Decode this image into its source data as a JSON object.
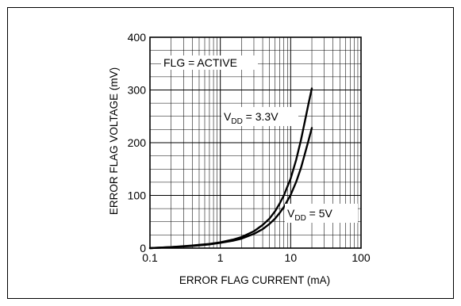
{
  "chart_data": {
    "type": "line",
    "xlabel": "ERROR FLAG CURRENT (mA)",
    "ylabel": "ERROR FLAG VOLTAGE (mV)",
    "xscale": "log",
    "xlim": [
      0.1,
      100
    ],
    "ylim": [
      0,
      400
    ],
    "xticks": [
      0.1,
      1,
      10,
      100
    ],
    "xtick_labels": [
      "0.1",
      "1",
      "10",
      "100"
    ],
    "yticks": [
      0,
      100,
      200,
      300,
      400
    ],
    "ytick_labels": [
      "0",
      "100",
      "200",
      "300",
      "400"
    ],
    "grid": true,
    "line_color": "#000000",
    "annotations": {
      "condition": "FLG = ACTIVE",
      "vdd33": {
        "prefix": "V",
        "sub": "DD",
        "suffix": " = 3.3V"
      },
      "vdd5": {
        "prefix": "V",
        "sub": "DD",
        "suffix": " = 5V"
      }
    },
    "series": [
      {
        "x": [
          0.1,
          0.2,
          0.4,
          0.7,
          1,
          1.5,
          2,
          3,
          4,
          5,
          6,
          7,
          8,
          10,
          12,
          14,
          16,
          18,
          20
        ],
        "y": [
          0,
          2,
          5,
          8,
          11,
          16,
          21,
          32,
          44,
          56,
          70,
          85,
          100,
          132,
          168,
          205,
          242,
          275,
          303
        ]
      },
      {
        "x": [
          0.1,
          0.2,
          0.4,
          0.7,
          1,
          1.5,
          2,
          3,
          4,
          5,
          6,
          7,
          8,
          10,
          12,
          14,
          16,
          18,
          20
        ],
        "y": [
          0,
          2,
          4,
          7,
          10,
          14,
          18,
          27,
          36,
          46,
          56,
          67,
          78,
          101,
          126,
          152,
          180,
          205,
          228
        ]
      }
    ]
  }
}
